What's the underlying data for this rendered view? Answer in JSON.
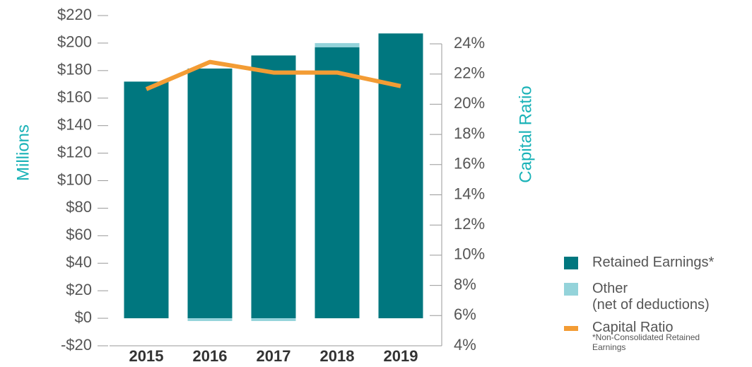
{
  "chart_data": {
    "type": "bar",
    "categories": [
      "2015",
      "2016",
      "2017",
      "2018",
      "2019"
    ],
    "series": [
      {
        "name": "Retained Earnings*",
        "color": "#00777f",
        "values": [
          172,
          181.5,
          191,
          197,
          207
        ]
      },
      {
        "name": "Other\n(net of deductions)",
        "color": "#94d3da",
        "values": [
          0,
          -2,
          -2,
          3,
          0
        ]
      },
      {
        "name": "Capital Ratio",
        "color": "#f39c34",
        "type": "line",
        "axis": "y2",
        "values": [
          21.0,
          22.8,
          22.1,
          22.1,
          21.2
        ]
      }
    ],
    "stacked": true,
    "ylabel": "Millions",
    "y2label": "Capital Ratio",
    "ylim": [
      -20,
      220
    ],
    "yticks": [
      {
        "value": -20,
        "label": "-$20"
      },
      {
        "value": 0,
        "label": "$0"
      },
      {
        "value": 20,
        "label": "$20"
      },
      {
        "value": 40,
        "label": "$40"
      },
      {
        "value": 60,
        "label": "$60"
      },
      {
        "value": 80,
        "label": "$80"
      },
      {
        "value": 100,
        "label": "$100"
      },
      {
        "value": 120,
        "label": "$120"
      },
      {
        "value": 140,
        "label": "$140"
      },
      {
        "value": 160,
        "label": "$160"
      },
      {
        "value": 180,
        "label": "$180"
      },
      {
        "value": 200,
        "label": "$200"
      },
      {
        "value": 220,
        "label": "$220"
      }
    ],
    "y2lim": [
      4,
      24
    ],
    "y2ticks": [
      {
        "value": 4,
        "label": "4%"
      },
      {
        "value": 6,
        "label": "6%"
      },
      {
        "value": 8,
        "label": "8%"
      },
      {
        "value": 10,
        "label": "10%"
      },
      {
        "value": 12,
        "label": "12%"
      },
      {
        "value": 14,
        "label": "14%"
      },
      {
        "value": 16,
        "label": "16%"
      },
      {
        "value": 18,
        "label": "18%"
      },
      {
        "value": 20,
        "label": "20%"
      },
      {
        "value": 22,
        "label": "22%"
      },
      {
        "value": 24,
        "label": "24%"
      }
    ],
    "legend": "right",
    "note": "*Non-Consolidated Retained\n Earnings"
  }
}
